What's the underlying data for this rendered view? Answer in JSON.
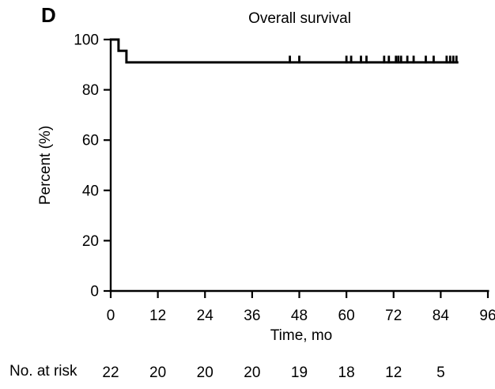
{
  "figure": {
    "panel_label": "D",
    "title": "Overall survival"
  },
  "chart_data": {
    "type": "line",
    "subtype": "kaplan-meier-step",
    "title": "Overall survival",
    "xlabel": "Time, mo",
    "ylabel": "Percent (%)",
    "xlim": [
      0,
      96
    ],
    "ylim": [
      0,
      100
    ],
    "xticks": [
      0,
      12,
      24,
      36,
      48,
      60,
      72,
      84,
      96
    ],
    "yticks": [
      0,
      20,
      40,
      60,
      80,
      100
    ],
    "grid": false,
    "legend": "none",
    "line_color": "#000000",
    "series": [
      {
        "name": "Overall survival",
        "step_points": [
          {
            "t": 0,
            "pct": 100
          },
          {
            "t": 2,
            "pct": 100
          },
          {
            "t": 2,
            "pct": 95.5
          },
          {
            "t": 4,
            "pct": 95.5
          },
          {
            "t": 4,
            "pct": 90.9
          },
          {
            "t": 88.5,
            "pct": 90.9
          }
        ],
        "censor_times": [
          45.6,
          48.0,
          60.0,
          61.2,
          63.7,
          65.1,
          69.6,
          70.8,
          72.6,
          73.2,
          73.9,
          75.5,
          77.1,
          80.2,
          82.2,
          85.5,
          86.4,
          87.2,
          88.0
        ]
      }
    ],
    "at_risk": {
      "label": "No. at risk",
      "times": [
        0,
        12,
        24,
        36,
        48,
        60,
        72,
        84
      ],
      "counts": [
        "22",
        "20",
        "20",
        "20",
        "19",
        "18",
        "12",
        "5"
      ]
    }
  }
}
